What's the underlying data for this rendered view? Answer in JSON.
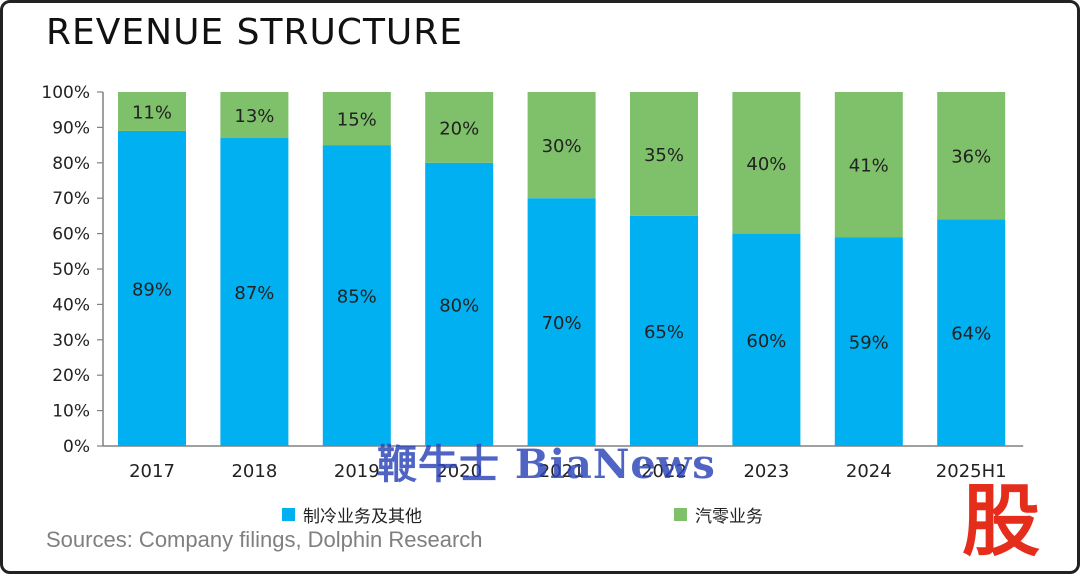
{
  "title": "REVENUE STRUCTURE",
  "source": "Sources: Company filings, Dolphin Research",
  "watermark": "鞭牛士 BiaNews",
  "corner_glyph": "股",
  "colors": {
    "series_1": "#00b0f0",
    "series_2": "#7ec16a",
    "axis": "#808080"
  },
  "chart_data": {
    "type": "bar",
    "stacked": true,
    "categories": [
      "2017",
      "2018",
      "2019",
      "2020",
      "2021",
      "2022",
      "2023",
      "2024",
      "2025H1"
    ],
    "series": [
      {
        "name": "制冷业务及其他",
        "values": [
          89,
          87,
          85,
          80,
          70,
          65,
          60,
          59,
          64
        ],
        "labels": [
          "89%",
          "87%",
          "85%",
          "80%",
          "70%",
          "65%",
          "60%",
          "59%",
          "64%"
        ]
      },
      {
        "name": "汽零业务",
        "values": [
          11,
          13,
          15,
          20,
          30,
          35,
          40,
          41,
          36
        ],
        "labels": [
          "11%",
          "13%",
          "15%",
          "20%",
          "30%",
          "35%",
          "40%",
          "41%",
          "36%"
        ]
      }
    ],
    "y_ticks": [
      "0%",
      "10%",
      "20%",
      "30%",
      "40%",
      "50%",
      "60%",
      "70%",
      "80%",
      "90%",
      "100%"
    ],
    "ylim": [
      0,
      100
    ],
    "legend_position": "bottom"
  }
}
